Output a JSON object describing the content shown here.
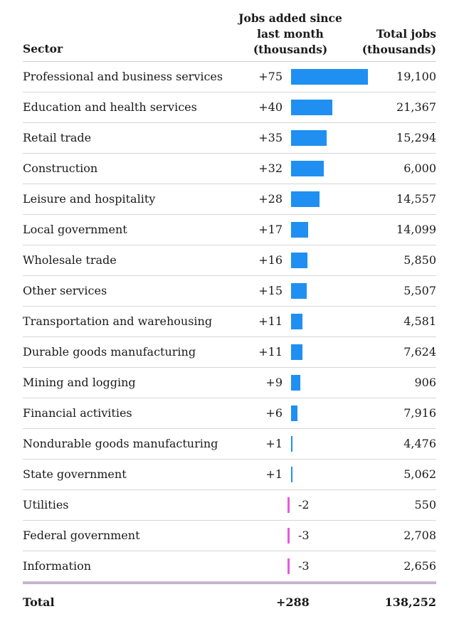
{
  "chart_data": {
    "type": "table",
    "columns": {
      "sector": "Sector",
      "jobs_added_lines": [
        "Jobs added since",
        "last month",
        "(thousands)"
      ],
      "total_jobs_lines": [
        "Total jobs",
        "(thousands)"
      ]
    },
    "rows": [
      {
        "sector": "Professional and business services",
        "change": 75,
        "change_label": "+75",
        "total": "19,100"
      },
      {
        "sector": "Education and health services",
        "change": 40,
        "change_label": "+40",
        "total": "21,367"
      },
      {
        "sector": "Retail trade",
        "change": 35,
        "change_label": "+35",
        "total": "15,294"
      },
      {
        "sector": "Construction",
        "change": 32,
        "change_label": "+32",
        "total": "6,000"
      },
      {
        "sector": "Leisure and hospitality",
        "change": 28,
        "change_label": "+28",
        "total": "14,557"
      },
      {
        "sector": "Local government",
        "change": 17,
        "change_label": "+17",
        "total": "14,099"
      },
      {
        "sector": "Wholesale trade",
        "change": 16,
        "change_label": "+16",
        "total": "5,850"
      },
      {
        "sector": "Other services",
        "change": 15,
        "change_label": "+15",
        "total": "5,507"
      },
      {
        "sector": "Transportation and warehousing",
        "change": 11,
        "change_label": "+11",
        "total": "4,581"
      },
      {
        "sector": "Durable goods manufacturing",
        "change": 11,
        "change_label": "+11",
        "total": "7,624"
      },
      {
        "sector": "Mining and logging",
        "change": 9,
        "change_label": "+9",
        "total": "906"
      },
      {
        "sector": "Financial activities",
        "change": 6,
        "change_label": "+6",
        "total": "7,916"
      },
      {
        "sector": "Nondurable goods manufacturing",
        "change": 1,
        "change_label": "+1",
        "total": "4,476"
      },
      {
        "sector": "State government",
        "change": 1,
        "change_label": "+1",
        "total": "5,062"
      },
      {
        "sector": "Utilities",
        "change": -2,
        "change_label": "-2",
        "total": "550"
      },
      {
        "sector": "Federal government",
        "change": -3,
        "change_label": "-3",
        "total": "2,708"
      },
      {
        "sector": "Information",
        "change": -3,
        "change_label": "-3",
        "total": "2,656"
      }
    ],
    "total_row": {
      "label": "Total",
      "change_label": "+288",
      "total": "138,252"
    },
    "colors": {
      "positive": "#1f8ff2",
      "negative": "#e85ad8"
    }
  }
}
